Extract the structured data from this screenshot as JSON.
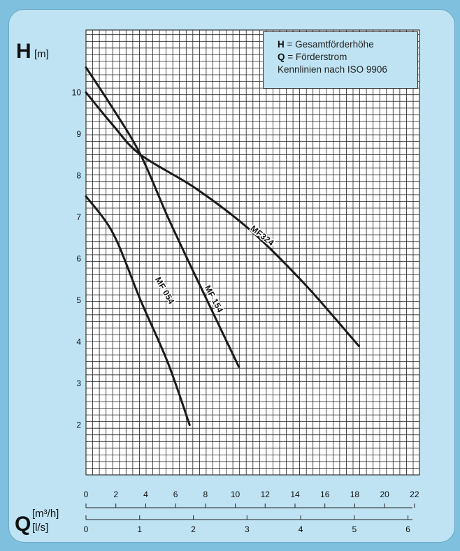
{
  "chart_data": {
    "type": "line",
    "title": "",
    "ylabel_symbol": "H",
    "ylabel_unit": "[m]",
    "xlabel_symbol": "Q",
    "xlabel_unit_top": "[m³/h]",
    "xlabel_unit_bottom": "[l/s]",
    "ylim": [
      0.8,
      11.5
    ],
    "y_ticks": [
      2,
      3,
      4,
      5,
      6,
      7,
      8,
      9,
      10
    ],
    "x_ticks_m3h": [
      0,
      2,
      4,
      6,
      8,
      10,
      12,
      14,
      16,
      18,
      20,
      22
    ],
    "x_ticks_ls": [
      0,
      1,
      2,
      3,
      4,
      5,
      6
    ],
    "xlim_ls": [
      0,
      6.11
    ],
    "grid": true,
    "legend": {
      "position": "top-right",
      "lines": [
        {
          "key": "H",
          "text": " = Gesamtförderhöhe"
        },
        {
          "key": "Q",
          "text": " = Förderstrom"
        },
        {
          "key": "",
          "text": "Kennlinien nach ISO 9906"
        }
      ]
    },
    "series": [
      {
        "name": "MF 054",
        "x_ls": [
          0,
          0.5,
          1.0,
          1.5,
          1.9
        ],
        "y": [
          7.5,
          6.6,
          5.0,
          3.5,
          2.0
        ]
      },
      {
        "name": "MF 154",
        "x_ls": [
          0,
          0.5,
          1.0,
          1.5,
          2.0,
          2.8
        ],
        "y": [
          10.6,
          9.6,
          8.5,
          7.0,
          5.6,
          3.4
        ]
      },
      {
        "name": "MF324",
        "x_ls": [
          0,
          0.5,
          1.0,
          2.0,
          3.0,
          4.0,
          5.0
        ],
        "y": [
          10.0,
          9.2,
          8.5,
          7.7,
          6.7,
          5.4,
          3.9
        ]
      }
    ]
  }
}
